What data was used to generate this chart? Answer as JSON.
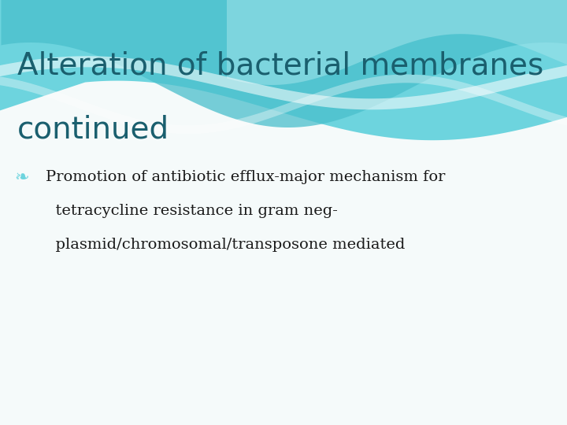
{
  "title_line1": "Alteration of bacterial membranes",
  "title_line2": "continued",
  "title_color": "#1a5f6e",
  "bullet_text_line1": "Promotion of antibiotic efflux-major mechanism for",
  "bullet_text_line2": "  tetracycline resistance in gram neg-",
  "bullet_text_line3": "  plasmid/chromosomal/transposone mediated",
  "body_text_color": "#1a1a1a",
  "bg_color": "#f5fafa",
  "wave_main_color": "#6dd4de",
  "wave_dark_color": "#4abfcc",
  "wave_light_color": "#a8e6ec",
  "white_stripe": "#ffffff",
  "title_fontsize": 28,
  "body_fontsize": 14
}
